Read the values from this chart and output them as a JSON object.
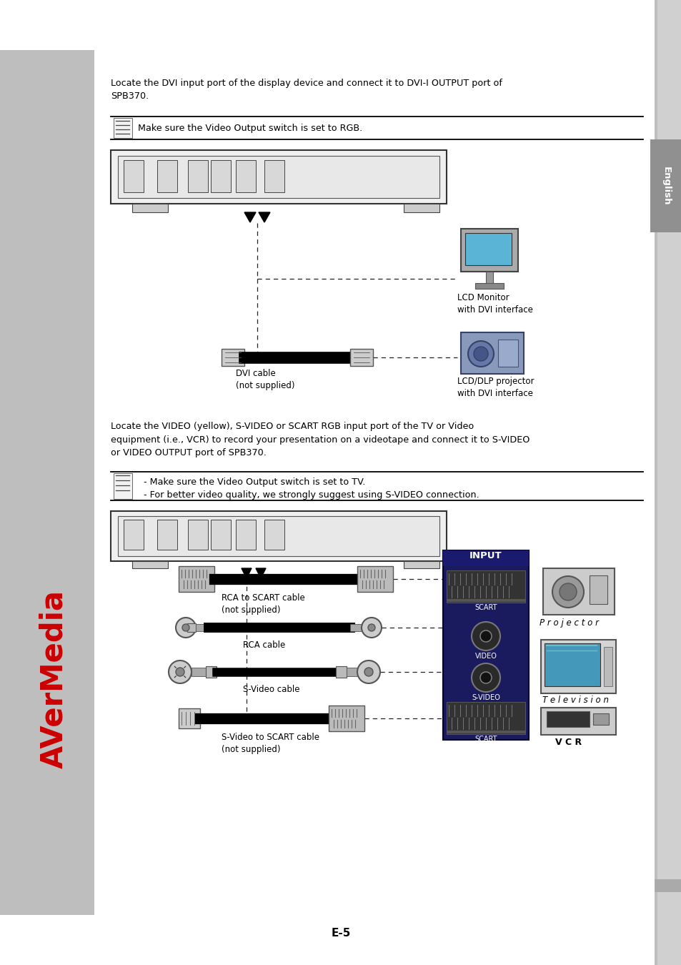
{
  "page_bg": "#ffffff",
  "left_bar_color": "#bebebe",
  "right_bar_color": "#bebebe",
  "english_text": "English",
  "page_number": "E-5",
  "section1_para": "Locate the DVI input port of the display device and connect it to DVI-I OUTPUT port of\nSPB370.",
  "section1_note": "Make sure the Video Output switch is set to RGB.",
  "section2_para": "Locate the VIDEO (yellow), S-VIDEO or SCART RGB input port of the TV or Video\nequipment (i.e., VCR) to record your presentation on a videotape and connect it to S-VIDEO\nor VIDEO OUTPUT port of SPB370.",
  "section2_note1": "  - Make sure the Video Output switch is set to TV.",
  "section2_note2": "  - For better video quality, we strongly suggest using S-VIDEO connection.",
  "dvi_cable_label": "DVI cable\n(not supplied)",
  "lcd_monitor_label": "LCD Monitor\nwith DVI interface",
  "lcd_dlp_label": "LCD/DLP projector\nwith DVI interface",
  "rca_scart_label": "RCA to SCART cable\n(not supplied)",
  "rca_label": "RCA cable",
  "svideo_label": "S-Video cable",
  "svideo_scart_label": "S-Video to SCART cable\n(not supplied)",
  "input_label": "INPUT",
  "scart_label": "SCART",
  "video_label": "VIDEO",
  "svideo_box_label": "S-VIDEO",
  "projector_label": "P r o j e c t o r",
  "television_label": "T e l e v i s i o n",
  "vcr_label": "V C R",
  "avermedia_color": "#cc0000",
  "font_color": "#000000"
}
